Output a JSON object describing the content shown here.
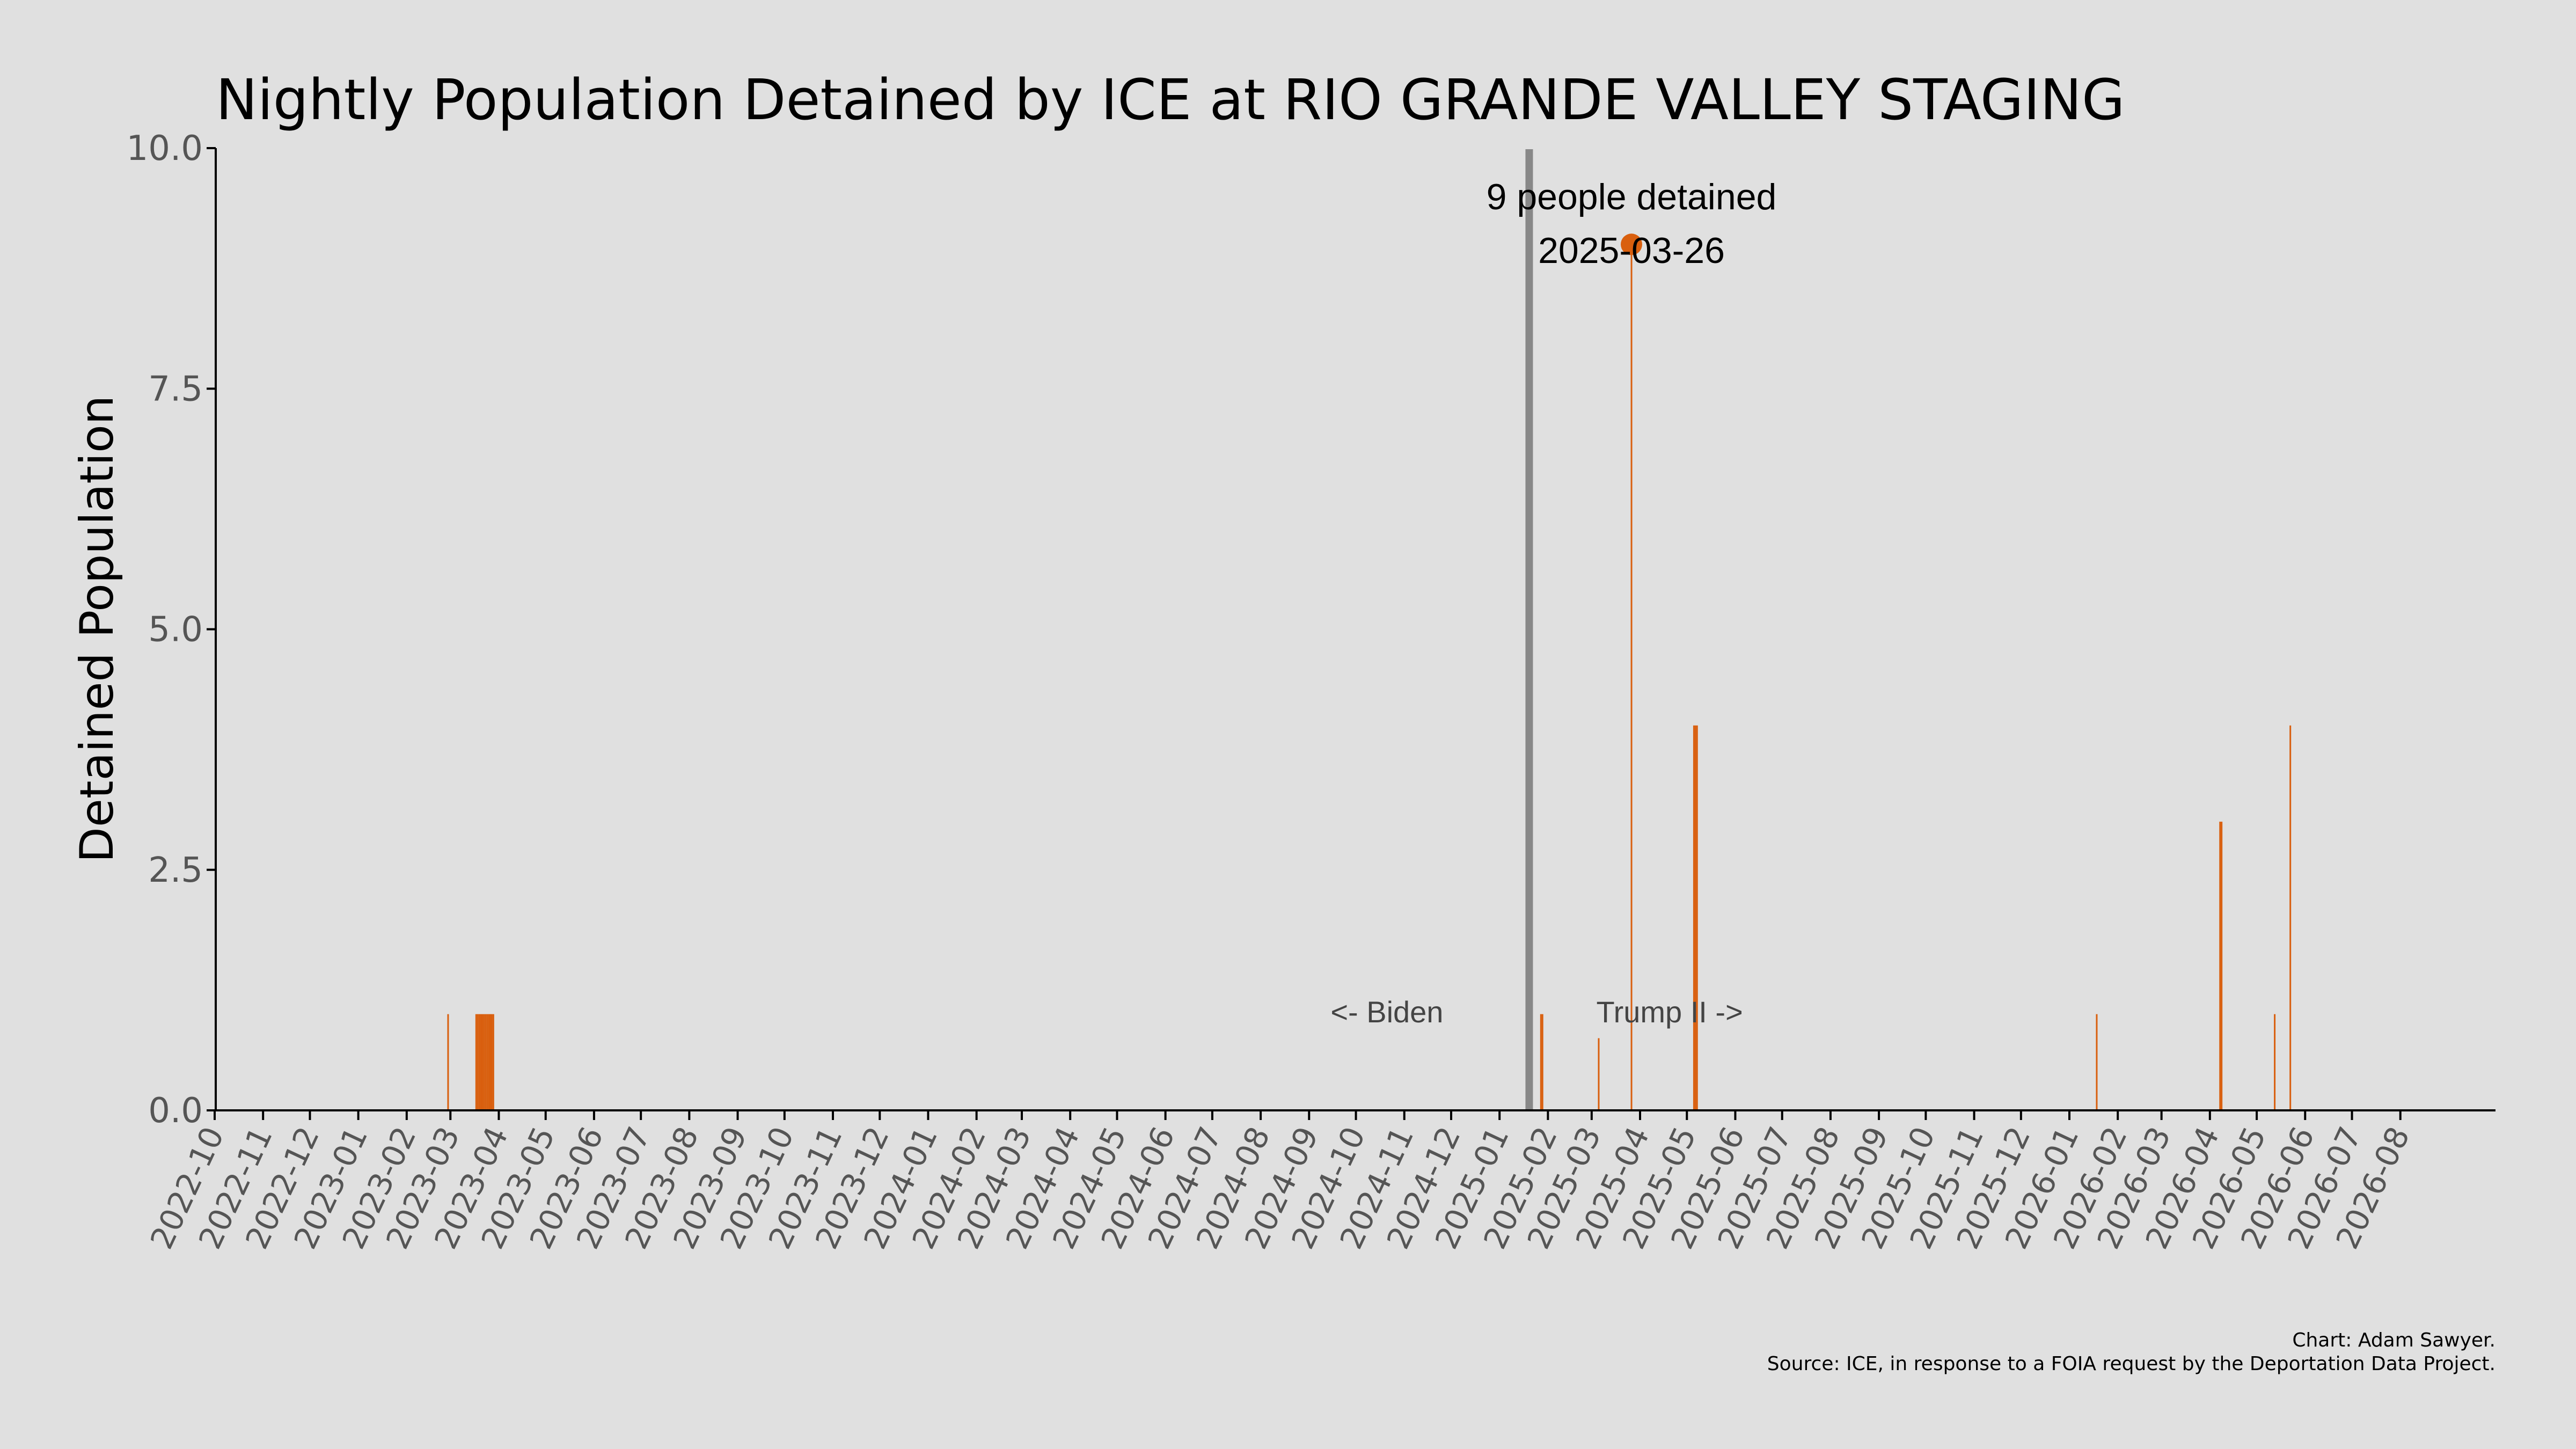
{
  "chart_data": {
    "type": "bar",
    "title": "Nightly Population Detained by ICE at RIO GRANDE VALLEY STAGING",
    "xlabel": "",
    "ylabel": "Detained Population",
    "ylim": [
      0,
      10
    ],
    "yticks": [
      "0.0",
      "2.5",
      "5.0",
      "7.5",
      "10.0"
    ],
    "xlim": [
      "2022-10-01",
      "2026-08-31"
    ],
    "xticks": [
      "2022-10",
      "2022-11",
      "2022-12",
      "2023-01",
      "2023-02",
      "2023-03",
      "2023-04",
      "2023-05",
      "2023-06",
      "2023-07",
      "2023-08",
      "2023-09",
      "2023-10",
      "2023-11",
      "2023-12",
      "2024-01",
      "2024-02",
      "2024-03",
      "2024-04",
      "2024-05",
      "2024-06",
      "2024-07",
      "2024-08",
      "2024-09",
      "2024-10",
      "2024-11",
      "2024-12",
      "2025-01",
      "2025-02",
      "2025-03",
      "2025-04",
      "2025-05",
      "2025-06",
      "2025-07",
      "2025-08",
      "2025-09",
      "2025-10",
      "2025-11",
      "2025-12",
      "2026-01",
      "2026-02",
      "2026-03",
      "2026-04",
      "2026-05",
      "2026-06",
      "2026-07",
      "2026-08"
    ],
    "grid": false,
    "series": [
      {
        "color": "#d95f0e",
        "points": [
          {
            "date": "2023-02-27",
            "value": 1
          },
          {
            "date": "2023-03-17",
            "value": 1
          },
          {
            "date": "2023-03-18",
            "value": 1
          },
          {
            "date": "2023-03-19",
            "value": 1
          },
          {
            "date": "2023-03-20",
            "value": 1
          },
          {
            "date": "2023-03-21",
            "value": 1
          },
          {
            "date": "2023-03-22",
            "value": 1
          },
          {
            "date": "2023-03-23",
            "value": 1
          },
          {
            "date": "2023-03-24",
            "value": 1
          },
          {
            "date": "2023-03-25",
            "value": 1
          },
          {
            "date": "2023-03-26",
            "value": 1
          },
          {
            "date": "2023-03-27",
            "value": 1
          },
          {
            "date": "2023-03-28",
            "value": 1
          },
          {
            "date": "2025-01-27",
            "value": 1
          },
          {
            "date": "2025-01-28",
            "value": 1
          },
          {
            "date": "2025-03-05",
            "value": 0.75
          },
          {
            "date": "2025-03-26",
            "value": 9
          },
          {
            "date": "2025-05-05",
            "value": 4
          },
          {
            "date": "2025-05-06",
            "value": 4
          },
          {
            "date": "2025-05-07",
            "value": 4
          },
          {
            "date": "2026-01-18",
            "value": 1
          },
          {
            "date": "2026-04-07",
            "value": 3
          },
          {
            "date": "2026-04-08",
            "value": 3
          },
          {
            "date": "2026-05-12",
            "value": 1
          },
          {
            "date": "2026-05-22",
            "value": 4
          }
        ]
      }
    ],
    "divider": {
      "date": "2025-01-20",
      "color": "#888888"
    },
    "left_era_label": "<- Biden",
    "right_era_label": "Trump II ->",
    "peak": {
      "date": "2025-03-26",
      "value": 9,
      "label_line1": "9 people detained",
      "label_line2": "2025-03-26",
      "color": "#d95f0e"
    },
    "credit_line1": "Chart: Adam Sawyer.",
    "credit_line2": "Source: ICE, in response to a FOIA request by the Deportation Data Project."
  }
}
